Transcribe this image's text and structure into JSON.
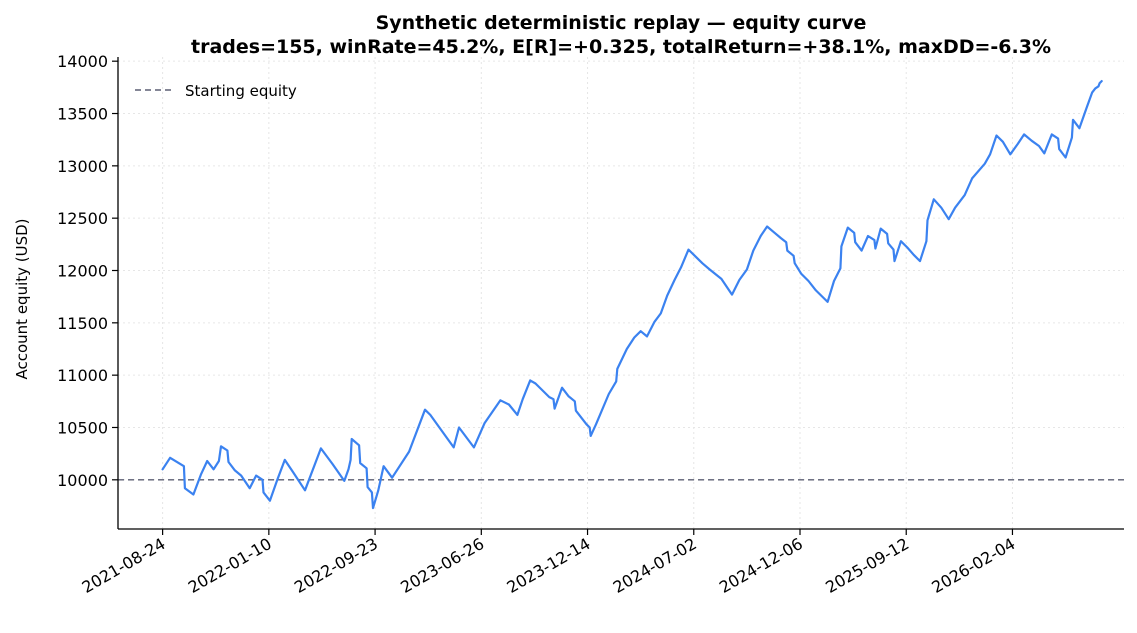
{
  "chart_data": {
    "type": "line",
    "title": "Synthetic deterministic replay — equity curve",
    "subtitle": "trades=155, winRate=45.2%, E[R]=+0.325, totalReturn=+38.1%, maxDD=-6.3%",
    "xlabel": "",
    "ylabel": "Account equity (USD)",
    "x_ticks": [
      "2021-08-24",
      "2022-01-10",
      "2022-09-23",
      "2023-06-26",
      "2023-12-14",
      "2024-07-02",
      "2024-12-06",
      "2025-09-12",
      "2026-02-04"
    ],
    "y_ticks": [
      10000,
      10500,
      11000,
      11500,
      12000,
      12500,
      13000,
      13500,
      14000
    ],
    "ylim": [
      9530,
      14040
    ],
    "xlim": [
      -0.42,
      9.05
    ],
    "grid": true,
    "legend": {
      "position": "top-left",
      "entries": [
        "Starting equity"
      ]
    },
    "colors": {
      "equity": "#3b82f0",
      "baseline": "#5c5f73",
      "grid": "#e6e6e6"
    },
    "reference_line": {
      "name": "Starting equity",
      "y": 10000,
      "style": "dashed"
    },
    "series": [
      {
        "name": "",
        "x_units": "tick-index",
        "points": [
          [
            0.0,
            10100
          ],
          [
            0.07,
            10210
          ],
          [
            0.2,
            10130
          ],
          [
            0.21,
            9920
          ],
          [
            0.29,
            9860
          ],
          [
            0.36,
            10050
          ],
          [
            0.42,
            10180
          ],
          [
            0.48,
            10100
          ],
          [
            0.53,
            10180
          ],
          [
            0.55,
            10320
          ],
          [
            0.61,
            10280
          ],
          [
            0.62,
            10170
          ],
          [
            0.68,
            10090
          ],
          [
            0.74,
            10040
          ],
          [
            0.82,
            9920
          ],
          [
            0.88,
            10040
          ],
          [
            0.94,
            10000
          ],
          [
            0.95,
            9880
          ],
          [
            1.01,
            9800
          ],
          [
            1.08,
            10000
          ],
          [
            1.15,
            10190
          ],
          [
            1.23,
            10070
          ],
          [
            1.34,
            9900
          ],
          [
            1.49,
            10300
          ],
          [
            1.6,
            10150
          ],
          [
            1.71,
            9990
          ],
          [
            1.75,
            10100
          ],
          [
            1.77,
            10190
          ],
          [
            1.78,
            10390
          ],
          [
            1.85,
            10330
          ],
          [
            1.86,
            10160
          ],
          [
            1.92,
            10110
          ],
          [
            1.93,
            9930
          ],
          [
            1.97,
            9880
          ],
          [
            1.98,
            9730
          ],
          [
            2.03,
            9900
          ],
          [
            2.08,
            10130
          ],
          [
            2.16,
            10020
          ],
          [
            2.32,
            10270
          ],
          [
            2.47,
            10670
          ],
          [
            2.52,
            10620
          ],
          [
            2.74,
            10310
          ],
          [
            2.79,
            10500
          ],
          [
            2.93,
            10310
          ],
          [
            3.03,
            10540
          ],
          [
            3.18,
            10760
          ],
          [
            3.26,
            10720
          ],
          [
            3.34,
            10620
          ],
          [
            3.39,
            10770
          ],
          [
            3.46,
            10950
          ],
          [
            3.51,
            10920
          ],
          [
            3.64,
            10790
          ],
          [
            3.68,
            10770
          ],
          [
            3.69,
            10680
          ],
          [
            3.76,
            10880
          ],
          [
            3.82,
            10800
          ],
          [
            3.88,
            10750
          ],
          [
            3.89,
            10660
          ],
          [
            3.99,
            10530
          ],
          [
            4.02,
            10500
          ],
          [
            4.03,
            10420
          ],
          [
            4.08,
            10530
          ],
          [
            4.2,
            10820
          ],
          [
            4.27,
            10940
          ],
          [
            4.28,
            11060
          ],
          [
            4.37,
            11250
          ],
          [
            4.44,
            11360
          ],
          [
            4.5,
            11420
          ],
          [
            4.56,
            11370
          ],
          [
            4.63,
            11510
          ],
          [
            4.69,
            11590
          ],
          [
            4.75,
            11760
          ],
          [
            4.82,
            11910
          ],
          [
            4.88,
            12030
          ],
          [
            4.95,
            12200
          ],
          [
            5.08,
            12070
          ],
          [
            5.15,
            12010
          ],
          [
            5.26,
            11920
          ],
          [
            5.36,
            11770
          ],
          [
            5.43,
            11910
          ],
          [
            5.5,
            12010
          ],
          [
            5.56,
            12190
          ],
          [
            5.63,
            12330
          ],
          [
            5.69,
            12420
          ],
          [
            5.75,
            12370
          ],
          [
            5.82,
            12310
          ],
          [
            5.87,
            12270
          ],
          [
            5.88,
            12190
          ],
          [
            5.94,
            12140
          ],
          [
            5.95,
            12070
          ],
          [
            6.01,
            11970
          ],
          [
            6.08,
            11900
          ],
          [
            6.15,
            11810
          ],
          [
            6.26,
            11700
          ],
          [
            6.32,
            11900
          ],
          [
            6.38,
            12020
          ],
          [
            6.39,
            12230
          ],
          [
            6.45,
            12410
          ],
          [
            6.51,
            12360
          ],
          [
            6.52,
            12270
          ],
          [
            6.58,
            12190
          ],
          [
            6.64,
            12330
          ],
          [
            6.7,
            12290
          ],
          [
            6.71,
            12210
          ],
          [
            6.76,
            12400
          ],
          [
            6.82,
            12350
          ],
          [
            6.83,
            12260
          ],
          [
            6.88,
            12200
          ],
          [
            6.89,
            12090
          ],
          [
            6.95,
            12280
          ],
          [
            7.01,
            12220
          ],
          [
            7.07,
            12150
          ],
          [
            7.13,
            12090
          ],
          [
            7.19,
            12280
          ],
          [
            7.2,
            12480
          ],
          [
            7.26,
            12680
          ],
          [
            7.33,
            12600
          ],
          [
            7.4,
            12490
          ],
          [
            7.46,
            12600
          ],
          [
            7.55,
            12720
          ],
          [
            7.62,
            12880
          ],
          [
            7.74,
            13020
          ],
          [
            7.79,
            13110
          ],
          [
            7.85,
            13290
          ],
          [
            7.91,
            13230
          ],
          [
            7.98,
            13110
          ],
          [
            8.05,
            13210
          ],
          [
            8.11,
            13300
          ],
          [
            8.18,
            13240
          ],
          [
            8.25,
            13190
          ],
          [
            8.3,
            13120
          ],
          [
            8.37,
            13300
          ],
          [
            8.43,
            13260
          ],
          [
            8.44,
            13160
          ],
          [
            8.5,
            13080
          ],
          [
            8.56,
            13270
          ],
          [
            8.57,
            13440
          ],
          [
            8.63,
            13360
          ],
          [
            8.7,
            13560
          ],
          [
            8.75,
            13700
          ],
          [
            8.78,
            13740
          ],
          [
            8.81,
            13760
          ],
          [
            8.82,
            13790
          ],
          [
            8.84,
            13810
          ]
        ]
      }
    ]
  }
}
